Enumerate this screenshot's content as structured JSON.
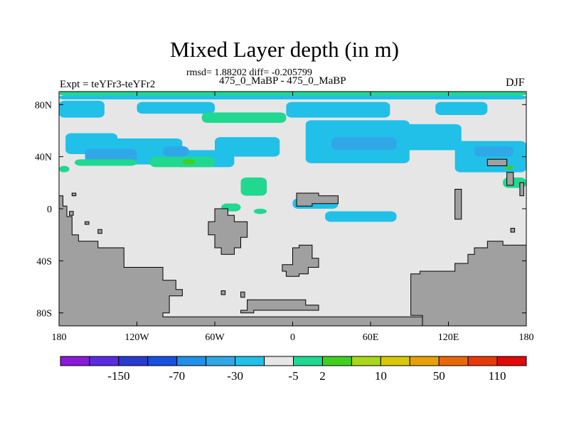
{
  "header": {
    "title": "Mixed Layer depth (in m)",
    "stats": "rmsd= 1.88202 diff= -0.205799",
    "pair": "475_0_MaBP - 475_0_MaBP",
    "expt": "Expt = teYFr3-teYFr2",
    "season": "DJF"
  },
  "chart_data": {
    "type": "heatmap",
    "title": "Mixed Layer depth (in m)",
    "subtitle": "475_0_MaBP - 475_0_MaBP",
    "stats": {
      "rmsd": 1.88202,
      "diff": -0.205799
    },
    "xlim": [
      -180,
      180
    ],
    "ylim": [
      -90,
      90
    ],
    "x_ticks": [
      {
        "value": -180,
        "label": "180"
      },
      {
        "value": -120,
        "label": "120W"
      },
      {
        "value": -60,
        "label": "60W"
      },
      {
        "value": 0,
        "label": "0"
      },
      {
        "value": 60,
        "label": "60E"
      },
      {
        "value": 120,
        "label": "120E"
      },
      {
        "value": 180,
        "label": "180"
      }
    ],
    "y_ticks": [
      {
        "value": 80,
        "label": "80N"
      },
      {
        "value": 40,
        "label": "40N"
      },
      {
        "value": 0,
        "label": "0"
      },
      {
        "value": -40,
        "label": "40S"
      },
      {
        "value": -80,
        "label": "80S"
      }
    ],
    "colorbar": {
      "colors": [
        "#8a1ad8",
        "#5a2ae0",
        "#2a3ad0",
        "#1850e0",
        "#2090e8",
        "#30a8e8",
        "#20c0e8",
        "#e6e6e6",
        "#20d890",
        "#40d020",
        "#a8d818",
        "#d8c808",
        "#e8a008",
        "#e86808",
        "#e83808",
        "#e00808"
      ],
      "labels": [
        "-150",
        "-70",
        "-30",
        "-5",
        "2",
        "10",
        "50",
        "110"
      ],
      "label_after_box": [
        1,
        3,
        5,
        7,
        8,
        10,
        12,
        14
      ]
    },
    "background_value_class": 7,
    "land_color": "#a0a0a0",
    "regions": [
      {
        "level": 8,
        "lon": [
          -180,
          180
        ],
        "lat": [
          87,
          90
        ]
      },
      {
        "level": 6,
        "lon": [
          -180,
          180
        ],
        "lat": [
          84,
          87
        ]
      },
      {
        "level": 6,
        "lon": [
          -180,
          -145
        ],
        "lat": [
          70,
          83
        ]
      },
      {
        "level": 6,
        "lon": [
          -120,
          -60
        ],
        "lat": [
          73,
          82
        ]
      },
      {
        "level": 6,
        "lon": [
          -5,
          75
        ],
        "lat": [
          70,
          82
        ]
      },
      {
        "level": 6,
        "lon": [
          110,
          150
        ],
        "lat": [
          72,
          82
        ]
      },
      {
        "level": 6,
        "lon": [
          -175,
          -135
        ],
        "lat": [
          42,
          58
        ]
      },
      {
        "level": 6,
        "lon": [
          -140,
          -85
        ],
        "lat": [
          34,
          54
        ]
      },
      {
        "level": 6,
        "lon": [
          -90,
          -45
        ],
        "lat": [
          32,
          45
        ]
      },
      {
        "level": 6,
        "lon": [
          -60,
          -10
        ],
        "lat": [
          40,
          55
        ]
      },
      {
        "level": 6,
        "lon": [
          10,
          90
        ],
        "lat": [
          35,
          68
        ]
      },
      {
        "level": 6,
        "lon": [
          75,
          130
        ],
        "lat": [
          45,
          65
        ]
      },
      {
        "level": 6,
        "lon": [
          125,
          180
        ],
        "lat": [
          28,
          52
        ]
      },
      {
        "level": 6,
        "lon": [
          0,
          35
        ],
        "lat": [
          0,
          8
        ]
      },
      {
        "level": 6,
        "lon": [
          25,
          80
        ],
        "lat": [
          -10,
          -2
        ]
      },
      {
        "level": 5,
        "lon": [
          -160,
          -120
        ],
        "lat": [
          36,
          46
        ]
      },
      {
        "level": 5,
        "lon": [
          -100,
          -80
        ],
        "lat": [
          40,
          48
        ]
      },
      {
        "level": 5,
        "lon": [
          30,
          80
        ],
        "lat": [
          45,
          55
        ]
      },
      {
        "level": 5,
        "lon": [
          140,
          170
        ],
        "lat": [
          40,
          48
        ]
      },
      {
        "level": 8,
        "lon": [
          -168,
          -120
        ],
        "lat": [
          33,
          38
        ]
      },
      {
        "level": 8,
        "lon": [
          -110,
          -60
        ],
        "lat": [
          32,
          40
        ]
      },
      {
        "level": 8,
        "lon": [
          -70,
          -5
        ],
        "lat": [
          66,
          74
        ]
      },
      {
        "level": 8,
        "lon": [
          -40,
          -20
        ],
        "lat": [
          10,
          24
        ]
      },
      {
        "level": 8,
        "lon": [
          -55,
          -40
        ],
        "lat": [
          -2,
          4
        ]
      },
      {
        "level": 8,
        "lon": [
          -180,
          -172
        ],
        "lat": [
          28,
          33
        ]
      },
      {
        "level": 8,
        "lon": [
          162,
          180
        ],
        "lat": [
          16,
          24
        ]
      },
      {
        "level": 8,
        "lon": [
          -30,
          -20
        ],
        "lat": [
          -4,
          0
        ]
      },
      {
        "level": 9,
        "lon": [
          -85,
          -75
        ],
        "lat": [
          34,
          38
        ]
      },
      {
        "level": 9,
        "lon": [
          164,
          170
        ],
        "lat": [
          30,
          33
        ]
      }
    ],
    "land_polygons": [
      [
        [
          -180,
          10
        ],
        [
          -177,
          10
        ],
        [
          -177,
          2
        ],
        [
          -174,
          2
        ],
        [
          -174,
          -6
        ],
        [
          -170,
          -6
        ],
        [
          -170,
          -20
        ],
        [
          -165,
          -20
        ],
        [
          -165,
          -25
        ],
        [
          -150,
          -25
        ],
        [
          -150,
          -30
        ],
        [
          -130,
          -30
        ],
        [
          -130,
          -45
        ],
        [
          -100,
          -45
        ],
        [
          -100,
          -55
        ],
        [
          -90,
          -55
        ],
        [
          -90,
          -62
        ],
        [
          -85,
          -62
        ],
        [
          -85,
          -67
        ],
        [
          -95,
          -67
        ],
        [
          -95,
          -80
        ],
        [
          -100,
          -80
        ],
        [
          -100,
          -83
        ],
        [
          180,
          -83
        ],
        [
          180,
          -90
        ],
        [
          -180,
          -90
        ]
      ],
      [
        [
          -180,
          10
        ],
        [
          -180,
          -90
        ],
        [
          -180,
          10
        ]
      ],
      [
        [
          -60,
          0
        ],
        [
          -50,
          0
        ],
        [
          -50,
          -5
        ],
        [
          -45,
          -5
        ],
        [
          -45,
          -10
        ],
        [
          -35,
          -10
        ],
        [
          -35,
          -22
        ],
        [
          -40,
          -22
        ],
        [
          -40,
          -30
        ],
        [
          -45,
          -30
        ],
        [
          -45,
          -35
        ],
        [
          -55,
          -35
        ],
        [
          -55,
          -30
        ],
        [
          -60,
          -30
        ],
        [
          -60,
          -20
        ],
        [
          -65,
          -20
        ],
        [
          -65,
          -10
        ],
        [
          -60,
          -10
        ]
      ],
      [
        [
          0,
          -30
        ],
        [
          5,
          -30
        ],
        [
          5,
          -28
        ],
        [
          15,
          -28
        ],
        [
          15,
          -38
        ],
        [
          20,
          -38
        ],
        [
          20,
          -45
        ],
        [
          12,
          -45
        ],
        [
          12,
          -50
        ],
        [
          5,
          -50
        ],
        [
          5,
          -52
        ],
        [
          -5,
          -52
        ],
        [
          -5,
          -48
        ],
        [
          -8,
          -48
        ],
        [
          -8,
          -43
        ],
        [
          0,
          -43
        ]
      ],
      [
        [
          -40,
          -78
        ],
        [
          -35,
          -78
        ],
        [
          -35,
          -70
        ],
        [
          10,
          -70
        ],
        [
          10,
          -74
        ],
        [
          20,
          -74
        ],
        [
          20,
          -78
        ],
        [
          -30,
          -78
        ],
        [
          -30,
          -80
        ],
        [
          -40,
          -80
        ]
      ],
      [
        [
          -55,
          -63
        ],
        [
          -52,
          -63
        ],
        [
          -52,
          -66
        ],
        [
          -55,
          -66
        ]
      ],
      [
        [
          -40,
          -64
        ],
        [
          -37,
          -64
        ],
        [
          -37,
          -68
        ],
        [
          -40,
          -68
        ]
      ],
      [
        [
          3,
          12
        ],
        [
          20,
          12
        ],
        [
          20,
          10
        ],
        [
          35,
          10
        ],
        [
          35,
          4
        ],
        [
          15,
          4
        ],
        [
          15,
          2
        ],
        [
          3,
          2
        ]
      ],
      [
        [
          125,
          15
        ],
        [
          130,
          15
        ],
        [
          130,
          -8
        ],
        [
          125,
          -8
        ]
      ],
      [
        [
          150,
          38
        ],
        [
          165,
          38
        ],
        [
          165,
          33
        ],
        [
          150,
          33
        ]
      ],
      [
        [
          165,
          28
        ],
        [
          170,
          28
        ],
        [
          170,
          18
        ],
        [
          165,
          18
        ]
      ],
      [
        [
          175,
          20
        ],
        [
          178,
          20
        ],
        [
          178,
          10
        ],
        [
          175,
          10
        ]
      ],
      [
        [
          91,
          -50
        ],
        [
          98,
          -50
        ],
        [
          98,
          -48
        ],
        [
          125,
          -48
        ],
        [
          125,
          -42
        ],
        [
          135,
          -42
        ],
        [
          135,
          -35
        ],
        [
          140,
          -35
        ],
        [
          140,
          -30
        ],
        [
          150,
          -30
        ],
        [
          150,
          -25
        ],
        [
          162,
          -25
        ],
        [
          162,
          -28
        ],
        [
          180,
          -28
        ],
        [
          180,
          -90
        ],
        [
          100,
          -90
        ],
        [
          100,
          -82
        ],
        [
          91,
          -82
        ]
      ],
      [
        [
          -170,
          12
        ],
        [
          -167,
          12
        ],
        [
          -167,
          10
        ],
        [
          -170,
          10
        ]
      ],
      [
        [
          -172,
          -2
        ],
        [
          -169,
          -2
        ],
        [
          -169,
          -5
        ],
        [
          -172,
          -5
        ]
      ],
      [
        [
          -160,
          -10
        ],
        [
          -157,
          -10
        ],
        [
          -157,
          -12
        ],
        [
          -160,
          -12
        ]
      ],
      [
        [
          -150,
          -16
        ],
        [
          -147,
          -16
        ],
        [
          -147,
          -19
        ],
        [
          -150,
          -19
        ]
      ],
      [
        [
          168,
          -15
        ],
        [
          171,
          -15
        ],
        [
          171,
          -18
        ],
        [
          168,
          -18
        ]
      ]
    ]
  }
}
